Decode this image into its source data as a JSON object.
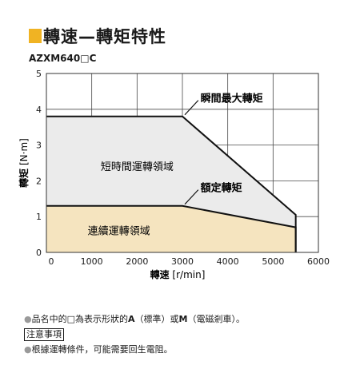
{
  "title": "轉速—轉矩特性",
  "model": "AZXM640□C",
  "chart_data": {
    "type": "area",
    "xlabel": "轉速",
    "xunit": "[r/min]",
    "ylabel": "轉矩",
    "yunit": "[N·m]",
    "xlim": [
      0,
      6000
    ],
    "ylim": [
      0,
      5
    ],
    "xticks": [
      0,
      1000,
      2000,
      3000,
      4000,
      5000,
      6000
    ],
    "yticks": [
      0,
      1,
      2,
      3,
      4,
      5
    ],
    "grid": true,
    "series": [
      {
        "name": "瞬間最大轉矩",
        "x": [
          0,
          3000,
          5500,
          5500
        ],
        "y": [
          3.8,
          3.8,
          1.05,
          0
        ],
        "fill": "#ebebeb",
        "region_label": "短時間運轉領域"
      },
      {
        "name": "額定轉矩",
        "x": [
          0,
          3000,
          5500,
          5500
        ],
        "y": [
          1.3,
          1.3,
          0.7,
          0
        ],
        "fill": "#f5e4bf",
        "region_label": "連續運轉領域"
      }
    ],
    "annotations": [
      {
        "text": "瞬間最大轉矩",
        "x": 3000,
        "y": 3.8
      },
      {
        "text": "額定轉矩",
        "x": 3000,
        "y": 1.3
      }
    ]
  },
  "notes": {
    "line1_prefix": "品名中的□為表示形狀的",
    "line1_a": "A",
    "line1_a_desc": "（標準）或",
    "line1_m": "M",
    "line1_m_desc": "（電磁剎車）。",
    "caution": "注意事項",
    "line2": "根據運轉條件，可能需要回生電阻。",
    "bullet": "●"
  }
}
